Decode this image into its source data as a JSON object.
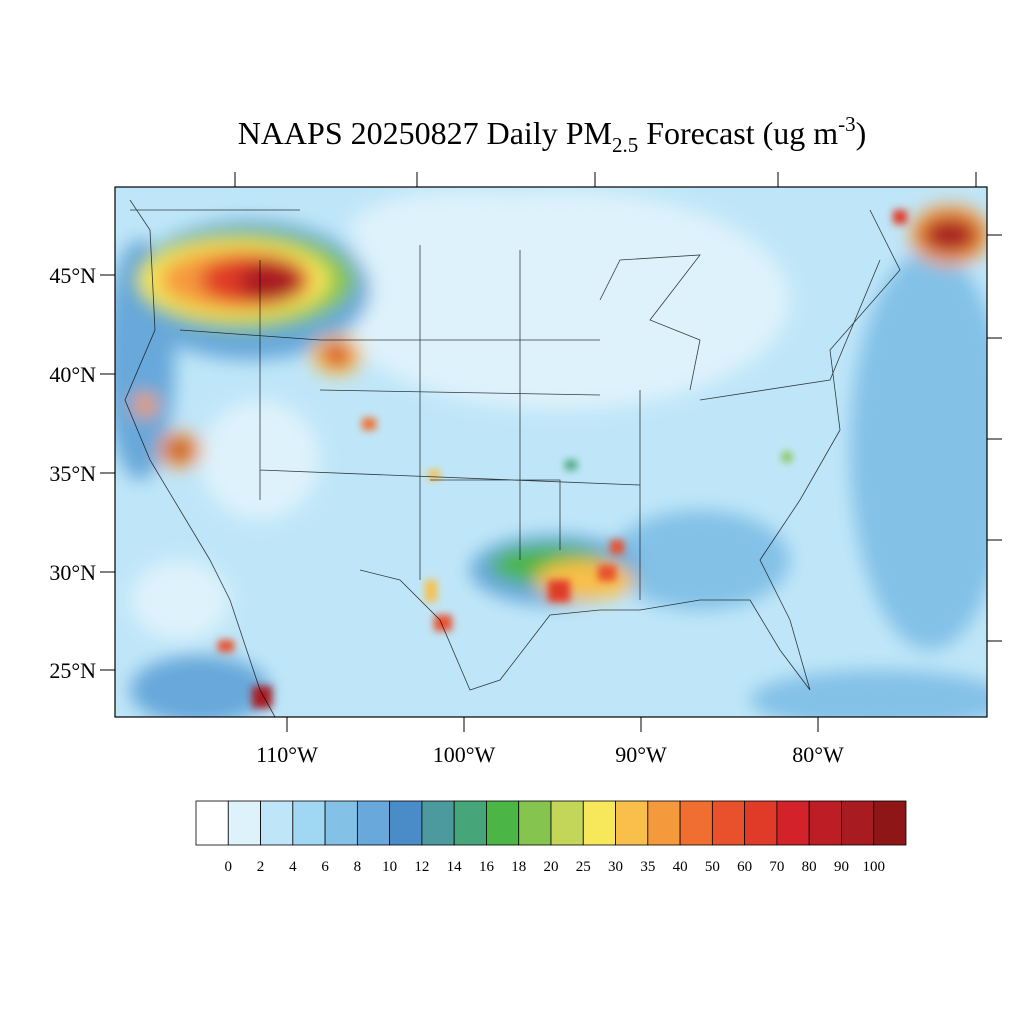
{
  "map": {
    "title": {
      "main": "NAAPS 20250827 Daily PM",
      "sub": "2.5",
      "rest": " Forecast (ug m",
      "sup": "-3",
      "end": ")"
    },
    "lat_labels": [
      "45°N",
      "40°N",
      "35°N",
      "30°N",
      "25°N"
    ],
    "lon_labels": [
      "110°W",
      "100°W",
      "90°W",
      "80°W"
    ],
    "colorbar": {
      "levels": [
        0,
        2,
        4,
        6,
        8,
        10,
        12,
        14,
        16,
        18,
        20,
        25,
        30,
        35,
        40,
        50,
        60,
        70,
        80,
        90,
        100
      ],
      "colors": [
        "#ffffff",
        "#ddf2fb",
        "#bfe6f8",
        "#a0d8f3",
        "#83c1e7",
        "#68a8da",
        "#4a8cc8",
        "#4c9a9e",
        "#46a67a",
        "#4bb546",
        "#86c450",
        "#c3d65a",
        "#f7e75b",
        "#f8c04a",
        "#f59a3c",
        "#f06e2f",
        "#e9502c",
        "#e03a28",
        "#d32229",
        "#bd1e25",
        "#a81b21",
        "#8e1617"
      ]
    }
  }
}
